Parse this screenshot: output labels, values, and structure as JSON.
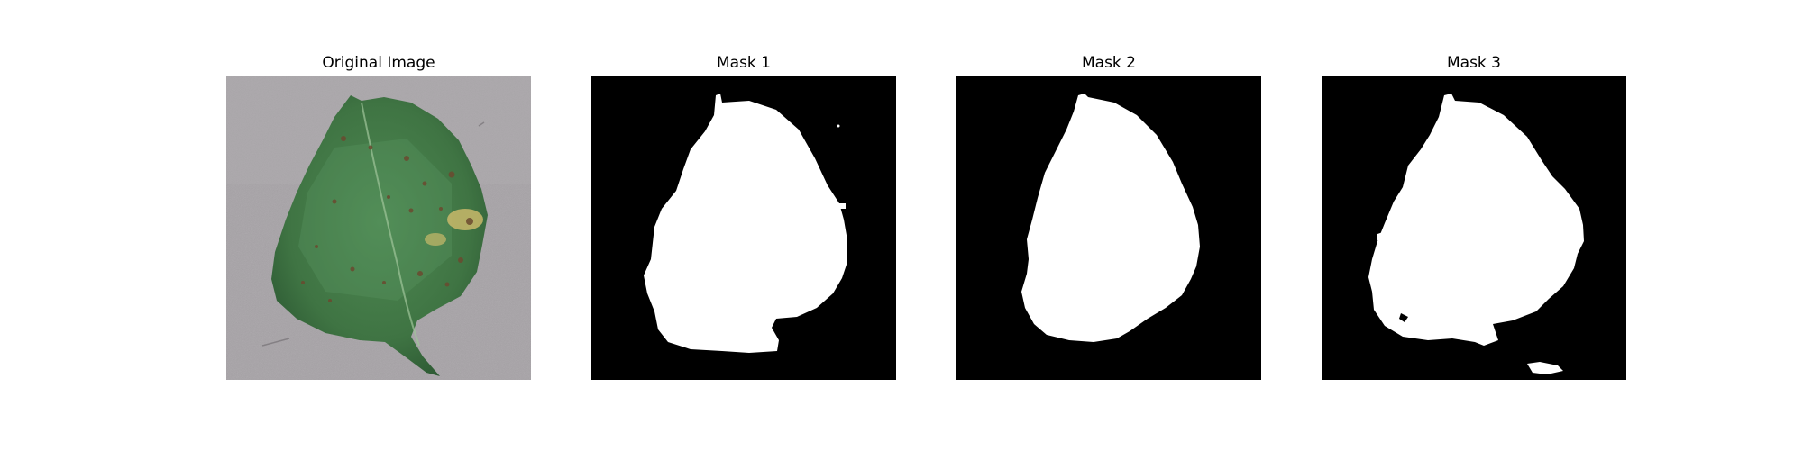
{
  "panels": [
    {
      "title": "Original Image"
    },
    {
      "title": "Mask 1"
    },
    {
      "title": "Mask 2"
    },
    {
      "title": "Mask 3"
    }
  ],
  "colors": {
    "background": "#ffffff",
    "mask_background": "#000000",
    "mask_foreground": "#ffffff",
    "leaf_green": "#3f7443",
    "leaf_dark": "#2f5a34",
    "surface_gray": "#a6a2a6",
    "lesion_brown": "#6b4a2f",
    "lesion_yellow": "#c9b96a"
  }
}
